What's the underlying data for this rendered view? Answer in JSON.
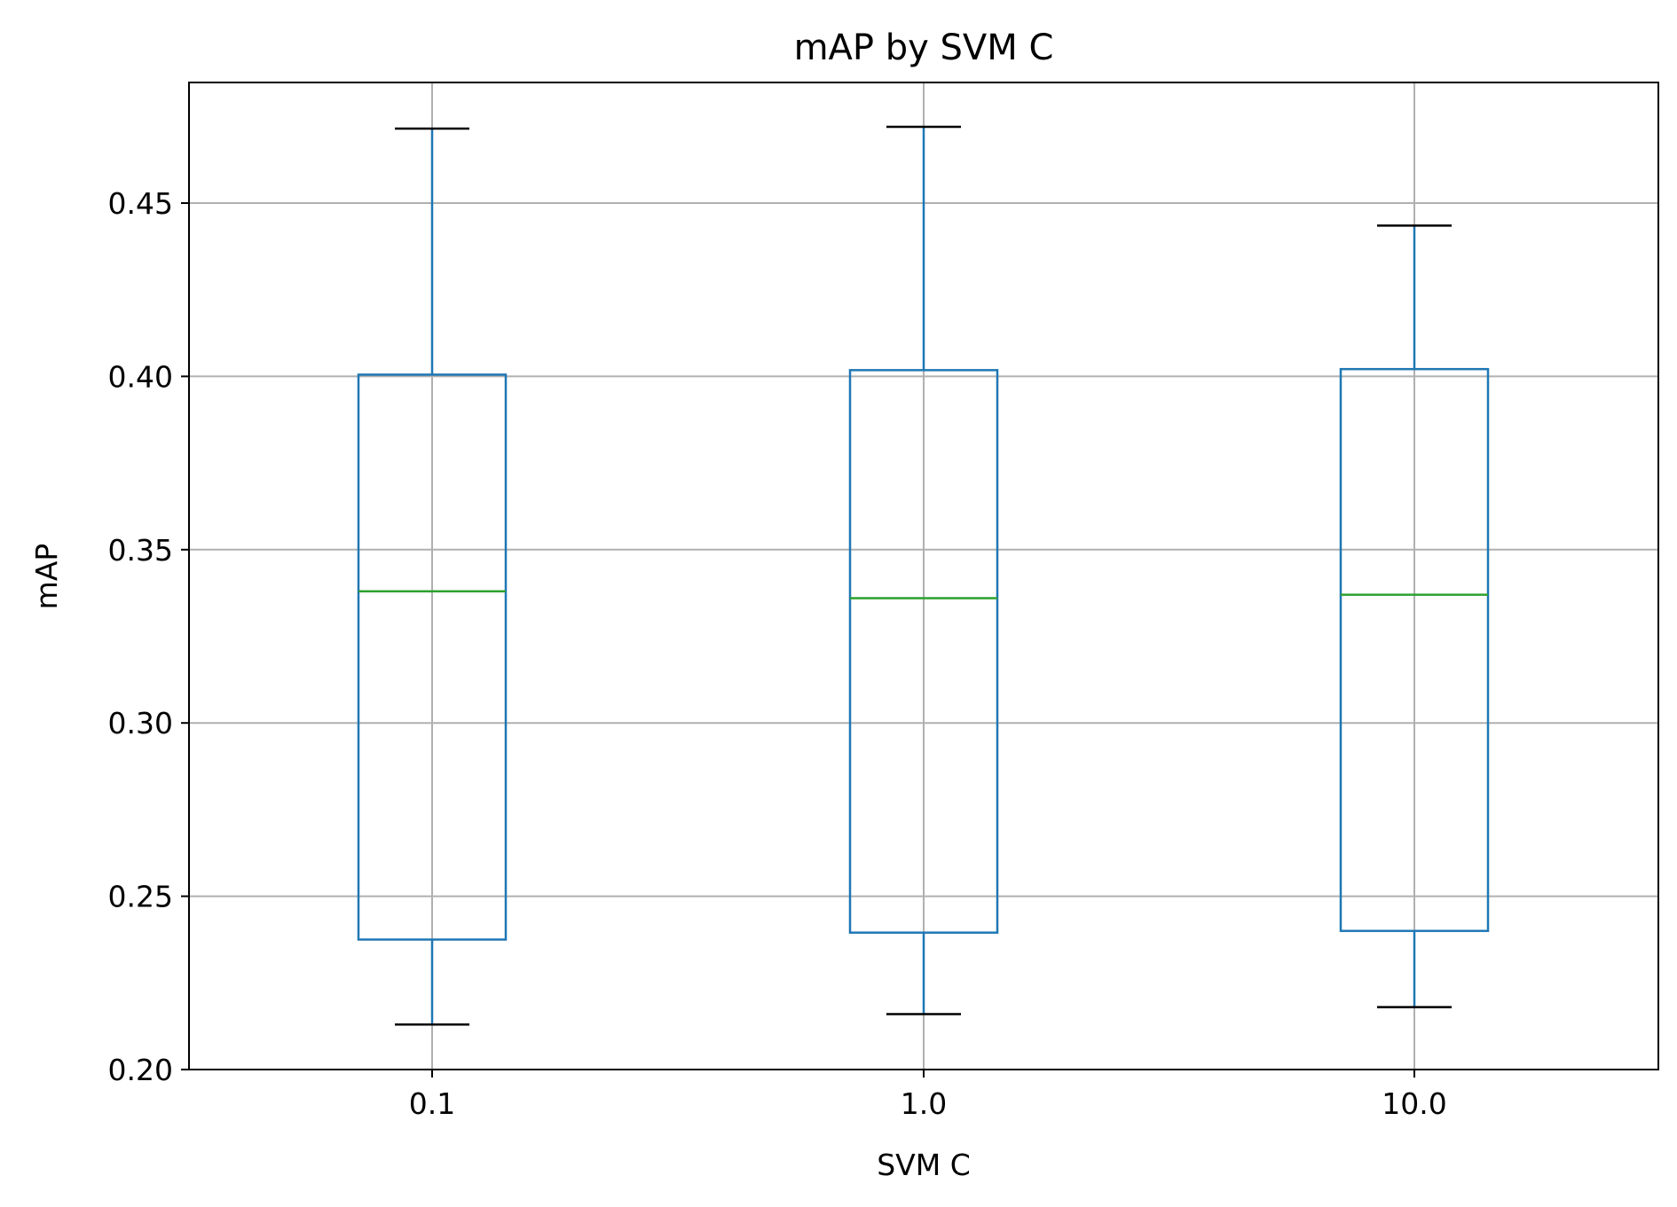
{
  "chart_data": {
    "type": "box",
    "title": "mAP by SVM C",
    "xlabel": "SVM C",
    "ylabel": "mAP",
    "categories": [
      "0.1",
      "1.0",
      "10.0"
    ],
    "boxes": [
      {
        "category": "0.1",
        "whisker_low": 0.213,
        "q1": 0.2375,
        "median": 0.338,
        "q3": 0.4005,
        "whisker_high": 0.4715
      },
      {
        "category": "1.0",
        "whisker_low": 0.216,
        "q1": 0.2395,
        "median": 0.336,
        "q3": 0.4018,
        "whisker_high": 0.472
      },
      {
        "category": "10.0",
        "whisker_low": 0.218,
        "q1": 0.24,
        "median": 0.337,
        "q3": 0.4021,
        "whisker_high": 0.4435
      }
    ],
    "ylim": [
      0.2,
      0.4848
    ],
    "yticks": [
      0.2,
      0.25,
      0.3,
      0.35,
      0.4,
      0.45
    ],
    "ytick_labels": [
      "0.20",
      "0.25",
      "0.30",
      "0.35",
      "0.40",
      "0.45"
    ],
    "grid": true,
    "colors": {
      "box": "#1f77b4",
      "whisker": "#1f77b4",
      "cap": "#000000",
      "median": "#2ca02c",
      "grid": "#b0b0b0",
      "axes": "#000000"
    }
  }
}
